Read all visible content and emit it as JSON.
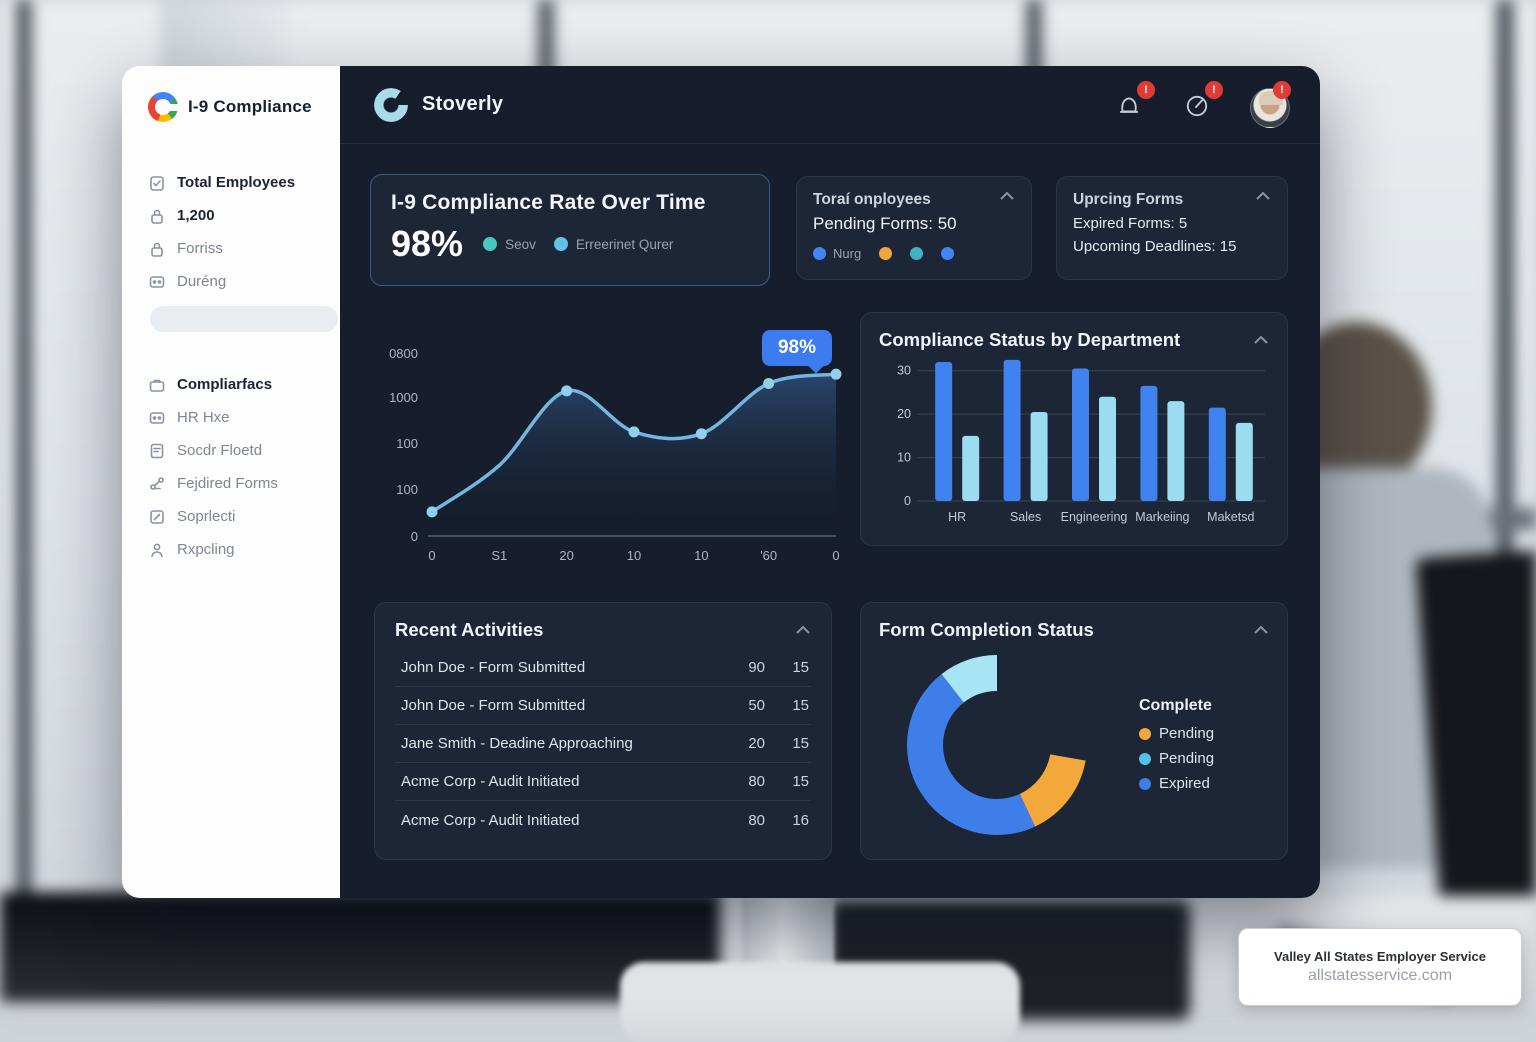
{
  "app": {
    "sidebar": {
      "logo_text": "I-9 Compliance",
      "groups": [
        {
          "items": [
            {
              "icon": "clipboard-check-icon",
              "label": "Total Employees",
              "bold": true
            },
            {
              "icon": "lock-icon",
              "label": "1,200",
              "bold": true
            },
            {
              "icon": "lock-icon",
              "label": "Forriss",
              "bold": false
            },
            {
              "icon": "id-card-icon",
              "label": "Duréng",
              "bold": false
            }
          ]
        },
        {
          "items": [
            {
              "icon": "briefcase-icon",
              "label": "Compliarfacs",
              "bold": true
            },
            {
              "icon": "id-card-icon",
              "label": "HR Hxe",
              "bold": false
            },
            {
              "icon": "document-icon",
              "label": "Socdr Floetd",
              "bold": false
            },
            {
              "icon": "share-icon",
              "label": "Fejdired Forms",
              "bold": false
            },
            {
              "icon": "edit-icon",
              "label": "Soprlecti",
              "bold": false
            },
            {
              "icon": "person-icon",
              "label": "Rxpcling",
              "bold": false
            }
          ]
        }
      ]
    },
    "header": {
      "brand": "Stoverly",
      "icons": [
        {
          "name": "bell-icon",
          "badge": "!"
        },
        {
          "name": "gauge-icon",
          "badge": "!"
        },
        {
          "name": "avatar",
          "badge": "!"
        }
      ]
    },
    "cards": {
      "compliance_rate": {
        "title": "I-9 Compliance Rate Over Time",
        "value": "98%",
        "legend": [
          {
            "label": "Seov",
            "color": "#45c8c0"
          },
          {
            "label": "Erreerinet Qurer",
            "color": "#62c1e8"
          }
        ]
      },
      "total_employees": {
        "title": "Toraí onployees",
        "stat": "Pending Forms: 50",
        "dots": [
          {
            "label": "Nurg",
            "color": "#4484f3"
          },
          {
            "label": "",
            "color": "#f0a63c"
          },
          {
            "label": "",
            "color": "#3fb3c4"
          },
          {
            "label": "",
            "color": "#4484f3"
          }
        ]
      },
      "upcoming_forms": {
        "title": "Uprcing Forms",
        "stat1": "Expired Forms: 5",
        "stat2": "Upcoming Deadlines: 15"
      }
    },
    "recent": {
      "title": "Recent Activities",
      "rows": [
        {
          "label": "John Doe - Form Submitted",
          "col1": "90",
          "col2": "15"
        },
        {
          "label": "John Doe - Form Submitted",
          "col1": "50",
          "col2": "15"
        },
        {
          "label": "Jane Smith - Deadine Approaching",
          "col1": "20",
          "col2": "15"
        },
        {
          "label": "Acme Corp - Audit Initiated",
          "col1": "80",
          "col2": "15"
        },
        {
          "label": "Acme Corp - Audit Initiated",
          "col1": "80",
          "col2": "16"
        }
      ]
    },
    "watermark": {
      "title": "Valley All States Employer Service",
      "url": "allstatesservice.com"
    }
  },
  "chart_data": [
    {
      "type": "line",
      "name": "i9-compliance-rate-over-time",
      "title": "I-9 Compliance Rate Over Time",
      "x_labels": [
        "0",
        "S1",
        "20",
        "10",
        "10",
        "'60",
        "0"
      ],
      "y_labels": [
        "0800",
        "1000",
        "100",
        "100",
        "0"
      ],
      "values": [
        13,
        38,
        78,
        56,
        55,
        82,
        87
      ],
      "markers": [
        true,
        false,
        true,
        true,
        true,
        true,
        true
      ],
      "tooltip_label": "98%",
      "line_color": "#74b6e2",
      "marker_color": "#8fd0ea",
      "area_top_color": "rgba(70,130,200,0.40)",
      "legend_position": "none",
      "grid": false
    },
    {
      "type": "bar",
      "title": "Compliance Status by Department",
      "categories": [
        "HR",
        "Sales",
        "Engineering",
        "Markeiing",
        "Maketsd"
      ],
      "series": [
        {
          "name": "primary",
          "color": "#4082ef",
          "values": [
            32,
            32.5,
            30.5,
            26.5,
            21.5
          ]
        },
        {
          "name": "secondary",
          "color": "#9adcf0",
          "values": [
            15,
            20.5,
            24,
            23,
            18
          ]
        }
      ],
      "y_ticks": [
        0,
        10,
        20,
        30
      ],
      "ylim": [
        0,
        35
      ],
      "grid": true,
      "legend_position": "none"
    },
    {
      "type": "donut",
      "title": "Form Completion Status",
      "segments": [
        {
          "label": "Pending",
          "color": "#f2a83a",
          "start_deg": 100,
          "end_deg": 155
        },
        {
          "label": "Expired",
          "color": "#3e7ee8",
          "start_deg": 155,
          "end_deg": 322
        },
        {
          "label": "Pending",
          "color": "#a7e4f4",
          "start_deg": 322,
          "end_deg": 360
        }
      ],
      "gap_deg": [
        0,
        100
      ],
      "legend_title": "Complete",
      "legend": [
        {
          "label": "Pending",
          "color": "#f2a83a"
        },
        {
          "label": "Pending",
          "color": "#55c1e8"
        },
        {
          "label": "Expired",
          "color": "#3e7ee8"
        }
      ],
      "legend_position": "right"
    }
  ]
}
